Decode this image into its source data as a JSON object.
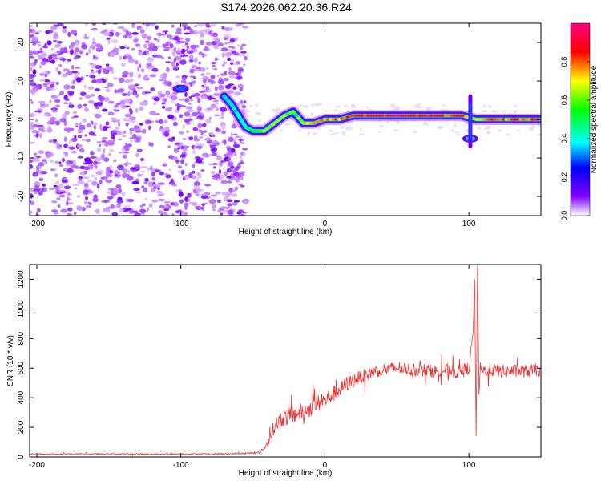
{
  "title": "S174.2026.062.20.36.R24",
  "chart_data": [
    {
      "type": "heatmap",
      "title": "S174.2026.062.20.36.R24",
      "xlabel": "Height of straight line (km)",
      "ylabel": "Frequency (Hz)",
      "xlim": [
        -205,
        150
      ],
      "ylim": [
        -25,
        25
      ],
      "xticks": [
        -200,
        -100,
        0,
        100
      ],
      "yticks": [
        -20,
        -10,
        0,
        10,
        20
      ],
      "colorbar": {
        "label": "Normalized spectral amplitude",
        "range": [
          0.0,
          1.0
        ],
        "ticks": [
          "0.0",
          "0.2",
          "0.4",
          "0.6",
          "0.8"
        ],
        "colors": [
          "#ffffff",
          "#8000ff",
          "#0000ff",
          "#00ffff",
          "#00ff00",
          "#ffff00",
          "#ff0000",
          "#ff0080"
        ]
      },
      "noise_region_x": [
        -205,
        -55
      ],
      "ridge": [
        {
          "x": -70,
          "f": 6,
          "amp": 0.35
        },
        {
          "x": -65,
          "f": 4,
          "amp": 0.4
        },
        {
          "x": -60,
          "f": 1,
          "amp": 0.4
        },
        {
          "x": -55,
          "f": -2,
          "amp": 0.45
        },
        {
          "x": -50,
          "f": -3,
          "amp": 0.55
        },
        {
          "x": -42,
          "f": -3,
          "amp": 0.7
        },
        {
          "x": -35,
          "f": -1,
          "amp": 0.7
        },
        {
          "x": -28,
          "f": 1,
          "amp": 0.65
        },
        {
          "x": -22,
          "f": 2,
          "amp": 0.6
        },
        {
          "x": -15,
          "f": -1,
          "amp": 0.7
        },
        {
          "x": -8,
          "f": -1,
          "amp": 0.75
        },
        {
          "x": 0,
          "f": 0,
          "amp": 0.8
        },
        {
          "x": 10,
          "f": 0,
          "amp": 0.8
        },
        {
          "x": 20,
          "f": 1,
          "amp": 0.9
        },
        {
          "x": 40,
          "f": 1,
          "amp": 0.95
        },
        {
          "x": 60,
          "f": 1,
          "amp": 0.95
        },
        {
          "x": 80,
          "f": 1,
          "amp": 0.9
        },
        {
          "x": 95,
          "f": 1,
          "amp": 0.85
        },
        {
          "x": 105,
          "f": 0,
          "amp": 0.7
        },
        {
          "x": 115,
          "f": 0,
          "amp": 0.8
        },
        {
          "x": 130,
          "f": 0,
          "amp": 0.85
        },
        {
          "x": 150,
          "f": 0,
          "amp": 0.85
        }
      ],
      "blobs": [
        {
          "x": -100,
          "f": 8,
          "amp": 0.3
        },
        {
          "x": 101,
          "f": -5,
          "amp": 0.35
        }
      ]
    },
    {
      "type": "line",
      "xlabel": "Height of straight line (km)",
      "ylabel": "SNR (10 * v/v)",
      "xlim": [
        -205,
        150
      ],
      "ylim": [
        0,
        1300
      ],
      "xticks": [
        -200,
        -100,
        0,
        100
      ],
      "yticks": [
        0,
        200,
        400,
        600,
        800,
        1000,
        1200
      ],
      "series": [
        {
          "name": "SNR",
          "color": "#ee3333",
          "x": [
            -205,
            -150,
            -100,
            -60,
            -45,
            -40,
            -35,
            -30,
            -25,
            -20,
            -15,
            -10,
            -5,
            0,
            5,
            10,
            15,
            20,
            25,
            30,
            35,
            40,
            45,
            50,
            55,
            60,
            65,
            70,
            75,
            80,
            85,
            90,
            95,
            100,
            103,
            104,
            105,
            106,
            107,
            108,
            110,
            115,
            120,
            130,
            140,
            150
          ],
          "y": [
            20,
            20,
            20,
            22,
            30,
            90,
            210,
            260,
            270,
            290,
            310,
            330,
            360,
            380,
            420,
            450,
            490,
            520,
            540,
            560,
            580,
            590,
            595,
            600,
            600,
            590,
            580,
            590,
            580,
            580,
            590,
            570,
            580,
            600,
            850,
            1200,
            140,
            1300,
            420,
            600,
            580,
            590,
            580,
            580,
            580,
            590
          ],
          "noise_amp": [
            4,
            4,
            4,
            4,
            6,
            30,
            50,
            60,
            60,
            60,
            60,
            60,
            60,
            60,
            55,
            55,
            55,
            50,
            45,
            45,
            45,
            45,
            45,
            45,
            45,
            45,
            45,
            45,
            45,
            45,
            45,
            45,
            45,
            45,
            0,
            0,
            0,
            0,
            0,
            40,
            45,
            45,
            45,
            45,
            45,
            45
          ]
        }
      ]
    }
  ]
}
